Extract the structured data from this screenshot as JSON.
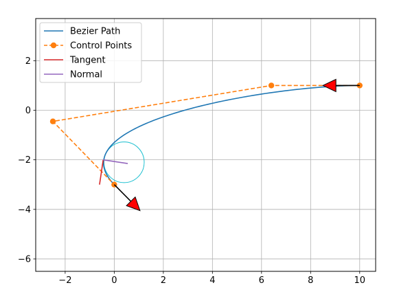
{
  "chart_data": {
    "type": "line",
    "title": "",
    "xlabel": "",
    "ylabel": "",
    "xlim": [
      -3.2,
      10.65
    ],
    "ylim": [
      -6.5,
      3.7
    ],
    "xticks": [
      -2,
      0,
      2,
      4,
      6,
      8,
      10
    ],
    "yticks": [
      -6,
      -4,
      -2,
      0,
      2
    ],
    "grid": true,
    "legend_position": "top-left",
    "legend": [
      {
        "label": "Bezier Path",
        "color": "#1f77b4",
        "style": "solid"
      },
      {
        "label": "Control Points",
        "color": "#ff7f0e",
        "style": "dashed-marker"
      },
      {
        "label": "Tangent",
        "color": "#d62728",
        "style": "solid"
      },
      {
        "label": "Normal",
        "color": "#9467bd",
        "style": "solid"
      }
    ],
    "control_points": [
      {
        "x": 10.0,
        "y": 1.0
      },
      {
        "x": 6.4,
        "y": 1.0
      },
      {
        "x": -2.5,
        "y": -0.45
      },
      {
        "x": 0.0,
        "y": -3.0
      }
    ],
    "tangent": {
      "x": [
        -0.45,
        -0.6
      ],
      "y": [
        -2.0,
        -3.0
      ]
    },
    "normal": {
      "x": [
        -0.45,
        0.55
      ],
      "y": [
        -2.0,
        -2.15
      ]
    },
    "circle": {
      "cx": 0.4,
      "cy": -2.1,
      "r": 0.82,
      "color": "#17becf"
    },
    "arrows": [
      {
        "x": 0.0,
        "y": -3.0,
        "dx": 1.05,
        "dy": -1.05,
        "color": "#ff0000"
      },
      {
        "x": 10.0,
        "y": 1.0,
        "dx": -1.5,
        "dy": 0.0,
        "color": "#ff0000"
      }
    ]
  }
}
